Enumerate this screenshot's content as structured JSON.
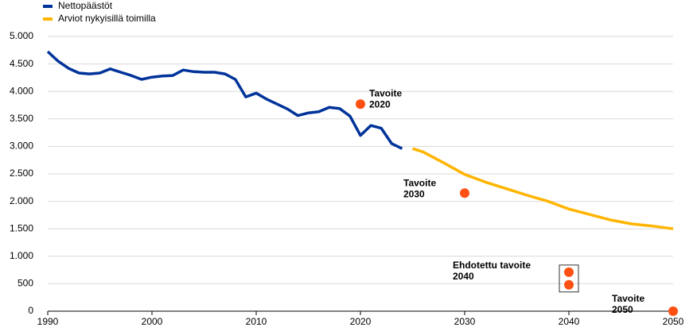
{
  "chart_data": {
    "type": "line",
    "legend": "top-left",
    "grid": true,
    "xlim": [
      1990,
      2050
    ],
    "xticks": [
      1990,
      2000,
      2010,
      2020,
      2030,
      2040,
      2050
    ],
    "ylim": [
      0,
      5000
    ],
    "yticks": [
      0,
      500,
      {
        "value": 1000,
        "label": "1.000"
      },
      {
        "value": 1500,
        "label": "1.500"
      },
      {
        "value": 2000,
        "label": "2.000"
      },
      {
        "value": 2500,
        "label": "2.500"
      },
      {
        "value": 3000,
        "label": "3.000"
      },
      {
        "value": 3500,
        "label": "3.500"
      },
      {
        "value": 4000,
        "label": "4.000"
      },
      {
        "value": 4500,
        "label": "4.500"
      },
      {
        "value": 5000,
        "label": "5.000"
      }
    ],
    "series": [
      {
        "name": "Nettopäästöt",
        "color": "#003399",
        "x": [
          1990,
          1991,
          1992,
          1993,
          1994,
          1995,
          1996,
          1997,
          1998,
          1999,
          2000,
          2001,
          2002,
          2003,
          2004,
          2005,
          2006,
          2007,
          2008,
          2009,
          2010,
          2011,
          2012,
          2013,
          2014,
          2015,
          2016,
          2017,
          2018,
          2019,
          2020,
          2021,
          2022,
          2023,
          2024
        ],
        "values": [
          4725,
          4550,
          4420,
          4335,
          4320,
          4335,
          4410,
          4350,
          4290,
          4220,
          4260,
          4280,
          4290,
          4390,
          4360,
          4350,
          4350,
          4320,
          4220,
          3900,
          3970,
          3860,
          3770,
          3680,
          3560,
          3610,
          3630,
          3710,
          3690,
          3550,
          3200,
          3380,
          3330,
          3050,
          2960
        ]
      },
      {
        "name": "Arviot nykyisillä toimilla",
        "color": "#ffb400",
        "x": [
          2025,
          2026,
          2028,
          2030,
          2032,
          2034,
          2036,
          2038,
          2040,
          2042,
          2044,
          2046,
          2048,
          2050
        ],
        "values": [
          2960,
          2900,
          2700,
          2490,
          2350,
          2230,
          2110,
          2000,
          1860,
          1760,
          1660,
          1590,
          1550,
          1500
        ]
      }
    ],
    "targets": {
      "color": "#ff5014",
      "points": [
        {
          "label": [
            "Tavoite",
            "2020"
          ],
          "x": 2020,
          "values": [
            3770
          ]
        },
        {
          "label": [
            "Tavoite",
            "2030"
          ],
          "x": 2030,
          "values": [
            2150
          ]
        },
        {
          "label": [
            "Ehdotettu tavoite",
            "2040"
          ],
          "x": 2040,
          "values": [
            710,
            480
          ]
        },
        {
          "label": [
            "Tavoite",
            "2050"
          ],
          "x": 2050,
          "values": [
            0
          ]
        }
      ]
    }
  }
}
